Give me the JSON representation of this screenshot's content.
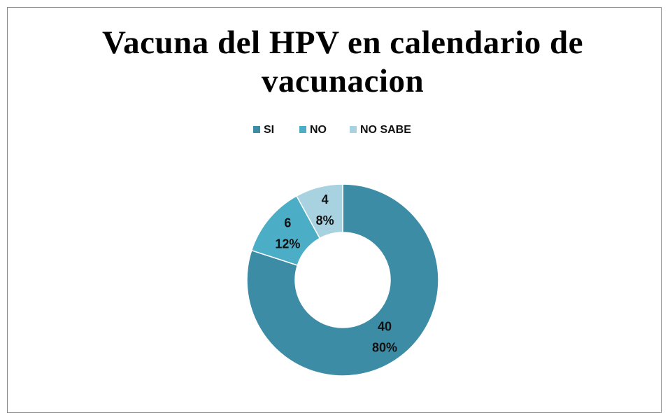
{
  "chart_data": {
    "type": "donut",
    "title": "Vacuna del HPV en calendario de vacunacion",
    "categories": [
      "SI",
      "NO",
      "NO SABE"
    ],
    "values": [
      40,
      6,
      4
    ],
    "percent_labels": [
      "80%",
      "12%",
      "8%"
    ],
    "colors": [
      "#3d8ca6",
      "#4badc6",
      "#a8d2e0"
    ],
    "legend": "top"
  }
}
